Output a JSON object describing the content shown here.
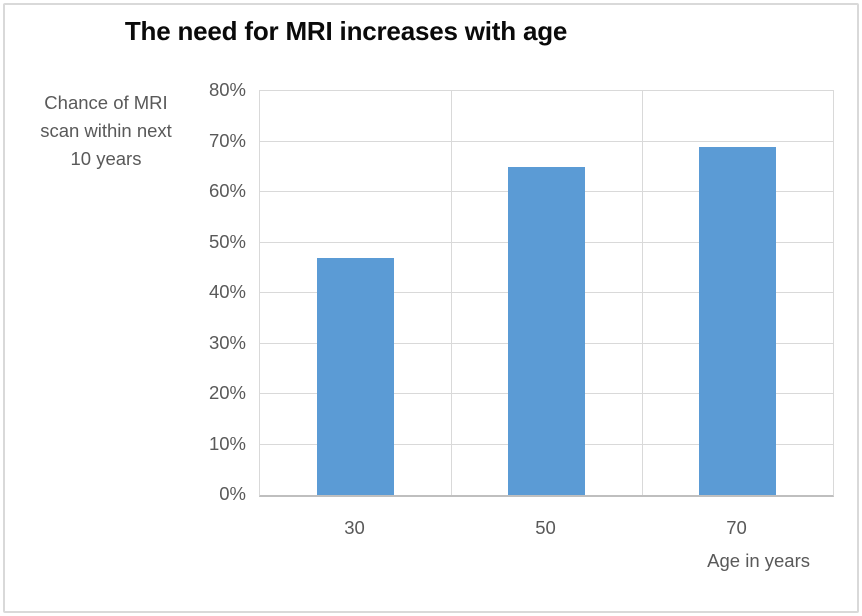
{
  "chart_data": {
    "type": "bar",
    "title": "The need for MRI increases with age",
    "categories": [
      "30",
      "50",
      "70"
    ],
    "values": [
      47,
      65,
      69
    ],
    "xlabel": "Age in years",
    "ylabel": "Chance of MRI scan within next 10 years",
    "ylabel_lines": [
      "Chance of MRI",
      "scan within next",
      "10 years"
    ],
    "ylim": [
      0,
      80
    ],
    "ytick_step": 10,
    "ytick_labels": [
      "0%",
      "10%",
      "20%",
      "30%",
      "40%",
      "50%",
      "60%",
      "70%",
      "80%"
    ],
    "grid": "horizontal-and-vertical",
    "legend": "none",
    "colors": {
      "bar": "#5B9BD5",
      "gridline": "#D9D9D9",
      "axis_line": "#BFBFBF",
      "tick_text": "#595959",
      "title_text": "#0A0A0A",
      "frame_border": "#D9D9D9",
      "background": "#FFFFFF"
    }
  }
}
